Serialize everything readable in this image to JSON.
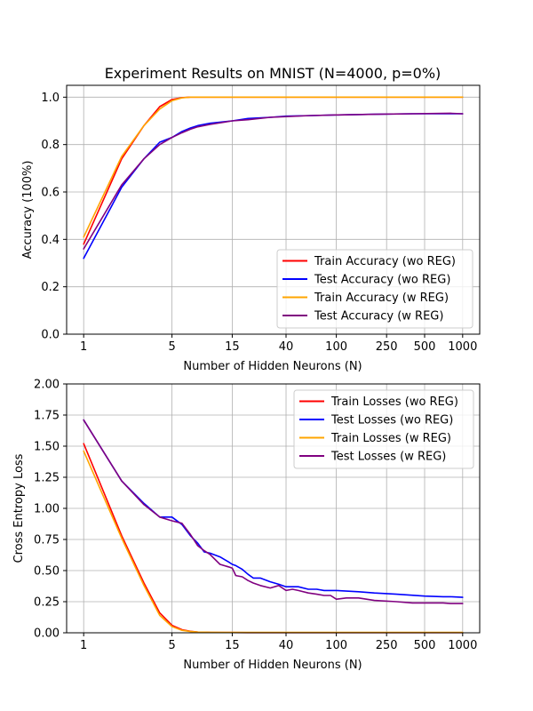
{
  "chart_data": [
    {
      "type": "line",
      "title": "Experiment Results on MNIST (N=4000, p=0%)",
      "xlabel": "Number of Hidden Neurons (N)",
      "ylabel": "Accuracy (100%)",
      "x_scale": "log",
      "xlim": [
        1,
        1000
      ],
      "ylim": [
        0,
        1.05
      ],
      "x_ticks": [
        1,
        5,
        15,
        40,
        100,
        250,
        500,
        1000
      ],
      "x_tick_labels": [
        "1",
        "5",
        "15",
        "40",
        "100",
        "250",
        "500",
        "1000"
      ],
      "y_ticks": [
        0.0,
        0.2,
        0.4,
        0.6,
        0.8,
        1.0
      ],
      "y_tick_labels": [
        "0.0",
        "0.2",
        "0.4",
        "0.6",
        "0.8",
        "1.0"
      ],
      "grid": true,
      "legend_position": "lower-right",
      "series": [
        {
          "name": "Train Accuracy (wo REG)",
          "color": "#ff0000",
          "x": [
            1,
            2,
            3,
            4,
            5,
            6,
            7,
            8,
            10,
            15,
            20,
            30,
            40,
            60,
            100,
            200,
            400,
            1000
          ],
          "y": [
            0.38,
            0.74,
            0.88,
            0.96,
            0.99,
            0.998,
            1.0,
            1.0,
            1.0,
            1.0,
            1.0,
            1.0,
            1.0,
            1.0,
            1.0,
            1.0,
            1.0,
            1.0
          ]
        },
        {
          "name": "Test Accuracy (wo REG)",
          "color": "#0000ff",
          "x": [
            1,
            2,
            3,
            4,
            5,
            6,
            7,
            8,
            10,
            15,
            20,
            30,
            40,
            60,
            100,
            200,
            400,
            1000
          ],
          "y": [
            0.32,
            0.62,
            0.74,
            0.81,
            0.83,
            0.855,
            0.87,
            0.88,
            0.89,
            0.9,
            0.91,
            0.915,
            0.92,
            0.922,
            0.925,
            0.928,
            0.93,
            0.93
          ]
        },
        {
          "name": "Train Accuracy (w REG)",
          "color": "#ffa500",
          "x": [
            1,
            2,
            3,
            4,
            5,
            6,
            7,
            8,
            10,
            15,
            20,
            30,
            40,
            60,
            100,
            200,
            400,
            1000
          ],
          "y": [
            0.41,
            0.75,
            0.88,
            0.95,
            0.985,
            0.997,
            1.0,
            1.0,
            1.0,
            1.0,
            1.0,
            1.0,
            1.0,
            1.0,
            1.0,
            1.0,
            1.0,
            1.0
          ]
        },
        {
          "name": "Test Accuracy (w REG)",
          "color": "#800080",
          "x": [
            1,
            2,
            3,
            4,
            5,
            6,
            7,
            8,
            10,
            15,
            20,
            30,
            40,
            60,
            100,
            200,
            400,
            800,
            1000
          ],
          "y": [
            0.36,
            0.63,
            0.74,
            0.8,
            0.83,
            0.85,
            0.865,
            0.875,
            0.885,
            0.9,
            0.905,
            0.915,
            0.918,
            0.922,
            0.925,
            0.928,
            0.93,
            0.932,
            0.93
          ]
        }
      ]
    },
    {
      "type": "line",
      "title": "",
      "xlabel": "Number of Hidden Neurons (N)",
      "ylabel": "Cross Entropy Loss",
      "x_scale": "log",
      "xlim": [
        1,
        1000
      ],
      "ylim": [
        0,
        2.0
      ],
      "x_ticks": [
        1,
        5,
        15,
        40,
        100,
        250,
        500,
        1000
      ],
      "x_tick_labels": [
        "1",
        "5",
        "15",
        "40",
        "100",
        "250",
        "500",
        "1000"
      ],
      "y_ticks": [
        0.0,
        0.25,
        0.5,
        0.75,
        1.0,
        1.25,
        1.5,
        1.75,
        2.0
      ],
      "y_tick_labels": [
        "0.00",
        "0.25",
        "0.50",
        "0.75",
        "1.00",
        "1.25",
        "1.50",
        "1.75",
        "2.00"
      ],
      "grid": true,
      "legend_position": "top-right",
      "series": [
        {
          "name": "Train Losses (wo REG)",
          "color": "#ff0000",
          "x": [
            1,
            2,
            3,
            4,
            5,
            6,
            7,
            8,
            10,
            15,
            20,
            40,
            100,
            1000
          ],
          "y": [
            1.52,
            0.78,
            0.4,
            0.16,
            0.06,
            0.025,
            0.012,
            0.006,
            0.003,
            0.002,
            0.001,
            0.001,
            0.001,
            0.001
          ]
        },
        {
          "name": "Test Losses (wo REG)",
          "color": "#0000ff",
          "x": [
            1,
            2,
            3,
            4,
            5,
            6,
            7,
            8,
            9,
            10,
            12,
            14,
            15,
            16,
            18,
            20,
            22,
            25,
            30,
            35,
            40,
            50,
            60,
            70,
            80,
            90,
            100,
            150,
            200,
            300,
            500,
            700,
            800,
            1000
          ],
          "y": [
            1.71,
            1.22,
            1.04,
            0.93,
            0.93,
            0.87,
            0.78,
            0.72,
            0.65,
            0.64,
            0.61,
            0.57,
            0.55,
            0.54,
            0.51,
            0.47,
            0.44,
            0.44,
            0.41,
            0.39,
            0.37,
            0.37,
            0.35,
            0.35,
            0.34,
            0.34,
            0.34,
            0.33,
            0.32,
            0.31,
            0.295,
            0.29,
            0.29,
            0.285
          ]
        },
        {
          "name": "Train Losses (w REG)",
          "color": "#ffa500",
          "x": [
            1,
            2,
            3,
            4,
            5,
            6,
            7,
            8,
            10,
            15,
            20,
            40,
            100,
            1000
          ],
          "y": [
            1.46,
            0.76,
            0.38,
            0.14,
            0.05,
            0.02,
            0.01,
            0.006,
            0.004,
            0.003,
            0.003,
            0.003,
            0.003,
            0.003
          ]
        },
        {
          "name": "Test Losses (w REG)",
          "color": "#800080",
          "x": [
            1,
            2,
            3,
            4,
            5,
            6,
            7,
            8,
            9,
            10,
            12,
            14,
            15,
            16,
            18,
            20,
            22,
            25,
            30,
            35,
            40,
            45,
            50,
            60,
            70,
            80,
            90,
            100,
            120,
            150,
            200,
            300,
            400,
            500,
            700,
            800,
            1000
          ],
          "y": [
            1.71,
            1.22,
            1.03,
            0.93,
            0.9,
            0.88,
            0.79,
            0.7,
            0.66,
            0.63,
            0.55,
            0.53,
            0.52,
            0.46,
            0.45,
            0.42,
            0.4,
            0.38,
            0.36,
            0.38,
            0.34,
            0.35,
            0.34,
            0.32,
            0.31,
            0.3,
            0.3,
            0.27,
            0.28,
            0.28,
            0.26,
            0.25,
            0.24,
            0.24,
            0.24,
            0.235,
            0.235
          ]
        }
      ]
    }
  ]
}
